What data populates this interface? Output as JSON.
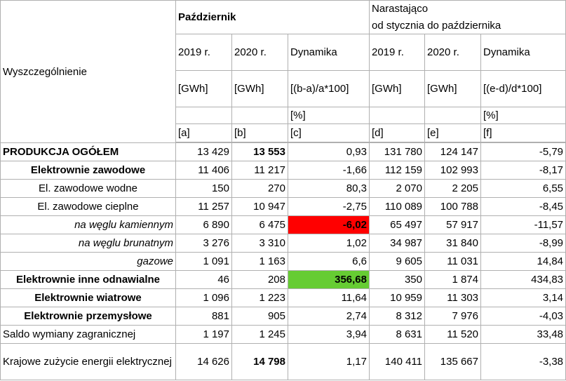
{
  "header": {
    "row_label": "Wyszczególnienie",
    "group1": "Październik",
    "group2_line1": "Narastająco",
    "group2_line2": "od stycznia do października",
    "col_years": [
      "2019 r.",
      "2020 r.",
      "Dynamika",
      "2019 r.",
      "2020 r.",
      "Dynamika"
    ],
    "col_units": [
      "[GWh]",
      "[GWh]",
      "[(b-a)/a*100]",
      "[GWh]",
      "[GWh]",
      "[(e-d)/d*100]"
    ],
    "col_pct": [
      "",
      "",
      "[%]",
      "",
      "",
      "[%]"
    ],
    "col_letters": [
      "[a]",
      "[b]",
      "[c]",
      "[d]",
      "[e]",
      "[f]"
    ]
  },
  "rows": [
    {
      "label": "PRODUKCJA OGÓŁEM",
      "a": "13 429",
      "b": "13 553",
      "c": "0,93",
      "d": "131 780",
      "e": "124 147",
      "f": "-5,79"
    },
    {
      "label": "Elektrownie zawodowe",
      "a": "11 406",
      "b": "11 217",
      "c": "-1,66",
      "d": "112 159",
      "e": "102 993",
      "f": "-8,17"
    },
    {
      "label": "El. zawodowe wodne",
      "a": "150",
      "b": "270",
      "c": "80,3",
      "d": "2 070",
      "e": "2 205",
      "f": "6,55"
    },
    {
      "label": "El. zawodowe cieplne",
      "a": "11 257",
      "b": "10 947",
      "c": "-2,75",
      "d": "110 089",
      "e": "100 788",
      "f": "-8,45"
    },
    {
      "label": "na węglu kamiennym",
      "a": "6 890",
      "b": "6 475",
      "c": "-6,02",
      "d": "65 497",
      "e": "57 917",
      "f": "-11,57"
    },
    {
      "label": "na węglu brunatnym",
      "a": "3 276",
      "b": "3 310",
      "c": "1,02",
      "d": "34 987",
      "e": "31 840",
      "f": "-8,99"
    },
    {
      "label": "gazowe",
      "a": "1 091",
      "b": "1 163",
      "c": "6,6",
      "d": "9 605",
      "e": "11 031",
      "f": "14,84"
    },
    {
      "label": "Elektrownie inne odnawialne",
      "a": "46",
      "b": "208",
      "c": "356,68",
      "d": "350",
      "e": "1 874",
      "f": "434,83"
    },
    {
      "label": "Elektrownie wiatrowe",
      "a": "1 096",
      "b": "1 223",
      "c": "11,64",
      "d": "10 959",
      "e": "11 303",
      "f": "3,14"
    },
    {
      "label": "Elektrownie przemysłowe",
      "a": "881",
      "b": "905",
      "c": "2,74",
      "d": "8 312",
      "e": "7 976",
      "f": "-4,03"
    },
    {
      "label": "Saldo wymiany zagranicznej",
      "a": "1 197",
      "b": "1 245",
      "c": "3,94",
      "d": "8 631",
      "e": "11 520",
      "f": "33,48"
    },
    {
      "label": "Krajowe zużycie energii elektrycznej",
      "a": "14 626",
      "b": "14 798",
      "c": "1,17",
      "d": "140 411",
      "e": "135 667",
      "f": "-3,38"
    }
  ],
  "highlights": {
    "negative": "#ff0000",
    "positive": "#66cc33"
  }
}
